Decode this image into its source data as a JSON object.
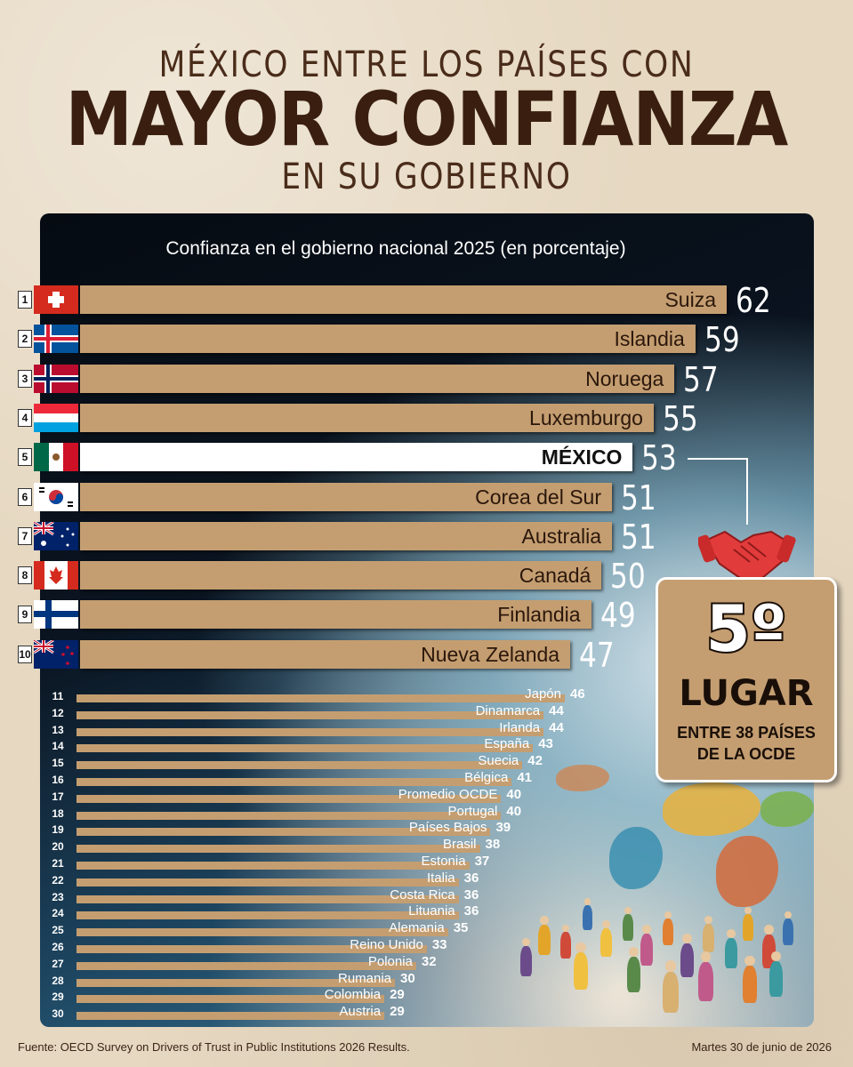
{
  "header": {
    "line1": "MÉXICO ENTRE LOS PAÍSES CON",
    "line2": "MAYOR CONFIANZA",
    "line3": "EN SU GOBIERNO"
  },
  "badge": {
    "place": "5º",
    "label": "LUGAR",
    "subtitle_line1": "ENTRE 38 PAÍSES",
    "subtitle_line2": "DE LA OCDE"
  },
  "footer": {
    "source": "Fuente: OECD Survey on Drivers of Trust in Public Institutions 2026 Results.",
    "date": "Martes 30 de junio de 2026"
  },
  "colors": {
    "bar": "#c49e71",
    "highlight_bar": "#ffffff",
    "title_brown": "#3a1f10"
  },
  "chart_data": {
    "type": "bar",
    "orientation": "horizontal",
    "title": "Confianza en el gobierno nacional 2025 (en porcentaje)",
    "highlight": "MÉXICO",
    "xlim": [
      0,
      62
    ],
    "ranks": [
      1,
      2,
      3,
      4,
      5,
      6,
      7,
      8,
      9,
      10,
      11,
      12,
      13,
      14,
      15,
      16,
      17,
      18,
      19,
      20,
      21,
      22,
      23,
      24,
      25,
      26,
      27,
      28,
      29,
      30
    ],
    "categories": [
      "Suiza",
      "Islandia",
      "Noruega",
      "Luxemburgo",
      "MÉXICO",
      "Corea del Sur",
      "Australia",
      "Canadá",
      "Finlandia",
      "Nueva Zelanda",
      "Japón",
      "Dinamarca",
      "Irlanda",
      "España",
      "Suecia",
      "Bélgica",
      "Promedio OCDE",
      "Portugal",
      "Países Bajos",
      "Brasil",
      "Estonia",
      "Italia",
      "Costa Rica",
      "Lituania",
      "Alemania",
      "Reino Unido",
      "Polonia",
      "Rumania",
      "Colombia",
      "Austria"
    ],
    "values": [
      62,
      59,
      57,
      55,
      53,
      51,
      51,
      50,
      49,
      47,
      46,
      44,
      44,
      43,
      42,
      41,
      40,
      40,
      39,
      38,
      37,
      36,
      36,
      36,
      35,
      33,
      32,
      30,
      29,
      29
    ],
    "flags": [
      "switzerland",
      "iceland",
      "norway",
      "luxembourg",
      "mexico",
      "south-korea",
      "australia",
      "canada",
      "finland",
      "new-zealand"
    ]
  }
}
